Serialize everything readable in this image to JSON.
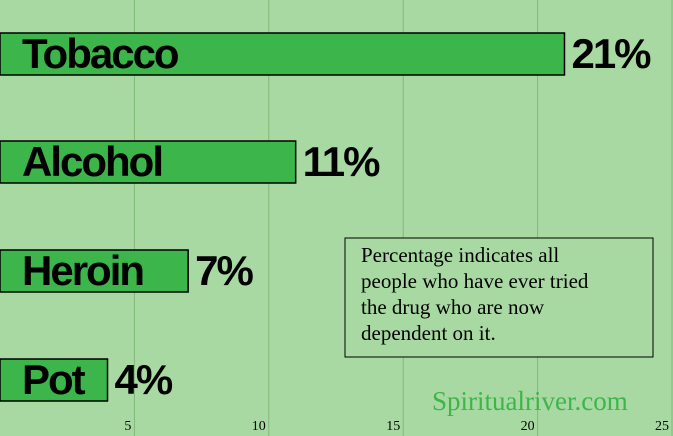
{
  "chart_data": {
    "type": "hbar",
    "categories": [
      "Tobacco",
      "Alcohol",
      "Heroin",
      "Pot"
    ],
    "values": [
      21,
      11,
      7,
      4
    ],
    "value_labels": [
      "21%",
      "11%",
      "7%",
      "4%"
    ],
    "color": "#3cb54a",
    "xlim": [
      0,
      25
    ],
    "xticks": [
      5,
      10,
      15,
      20,
      25
    ],
    "grid": true,
    "annotation": [
      "Percentage indicates all",
      "people who have ever tried",
      "the drug who are now",
      "dependent on it."
    ],
    "watermark": "Spiritualriver.com"
  }
}
